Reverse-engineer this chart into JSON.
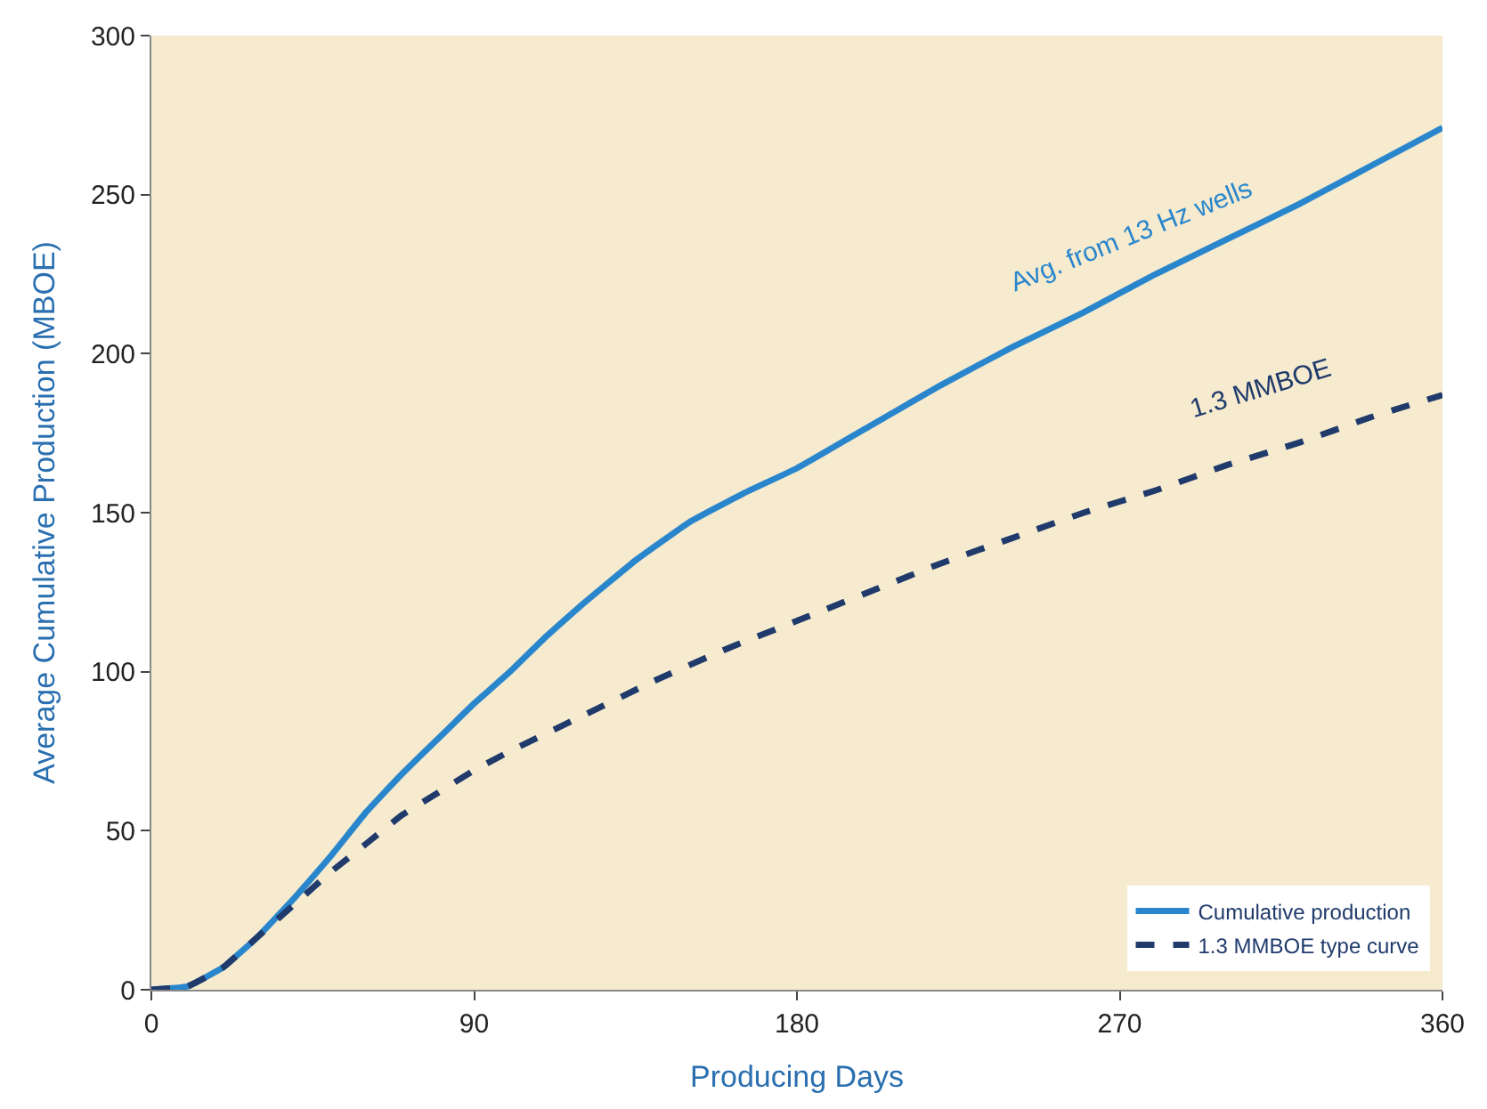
{
  "chart_data": {
    "type": "line",
    "xlabel": "Producing Days",
    "ylabel": "Average Cumulative Production (MBOE)",
    "xlim": [
      0,
      360
    ],
    "xticks": [
      0,
      90,
      180,
      270,
      360
    ],
    "ylim": [
      0,
      300
    ],
    "yticks": [
      0,
      50,
      100,
      150,
      200,
      250,
      300
    ],
    "grid": false,
    "legend": "bottom right",
    "marker": "none",
    "series": [
      {
        "name": "Cumulative production",
        "color": "#2a86cc",
        "line_style": "solid",
        "x": [
          0,
          10,
          20,
          30,
          40,
          50,
          60,
          70,
          80,
          90,
          100,
          110,
          120,
          135,
          150,
          165,
          180,
          200,
          220,
          240,
          260,
          280,
          300,
          320,
          340,
          360
        ],
        "values": [
          0,
          1,
          7,
          17,
          29,
          42,
          56,
          68,
          79,
          90,
          100,
          111,
          121,
          135,
          147,
          156,
          164,
          177,
          190,
          202,
          213,
          225,
          236,
          247,
          259,
          271
        ]
      },
      {
        "name": "1.3 MMBOE type curve",
        "color": "#1f3a6b",
        "line_style": "dashed",
        "x": [
          0,
          10,
          20,
          30,
          40,
          50,
          60,
          70,
          80,
          90,
          100,
          120,
          140,
          160,
          180,
          200,
          220,
          240,
          260,
          280,
          300,
          320,
          340,
          360
        ],
        "values": [
          0,
          1,
          7,
          17,
          27,
          37,
          46,
          55,
          62,
          69,
          75,
          86,
          97,
          107,
          116,
          125,
          134,
          142,
          150,
          157,
          165,
          172,
          180,
          187
        ]
      }
    ],
    "annotations": [
      "Avg. from 13 Hz wells",
      "1.3 MMBOE"
    ]
  }
}
